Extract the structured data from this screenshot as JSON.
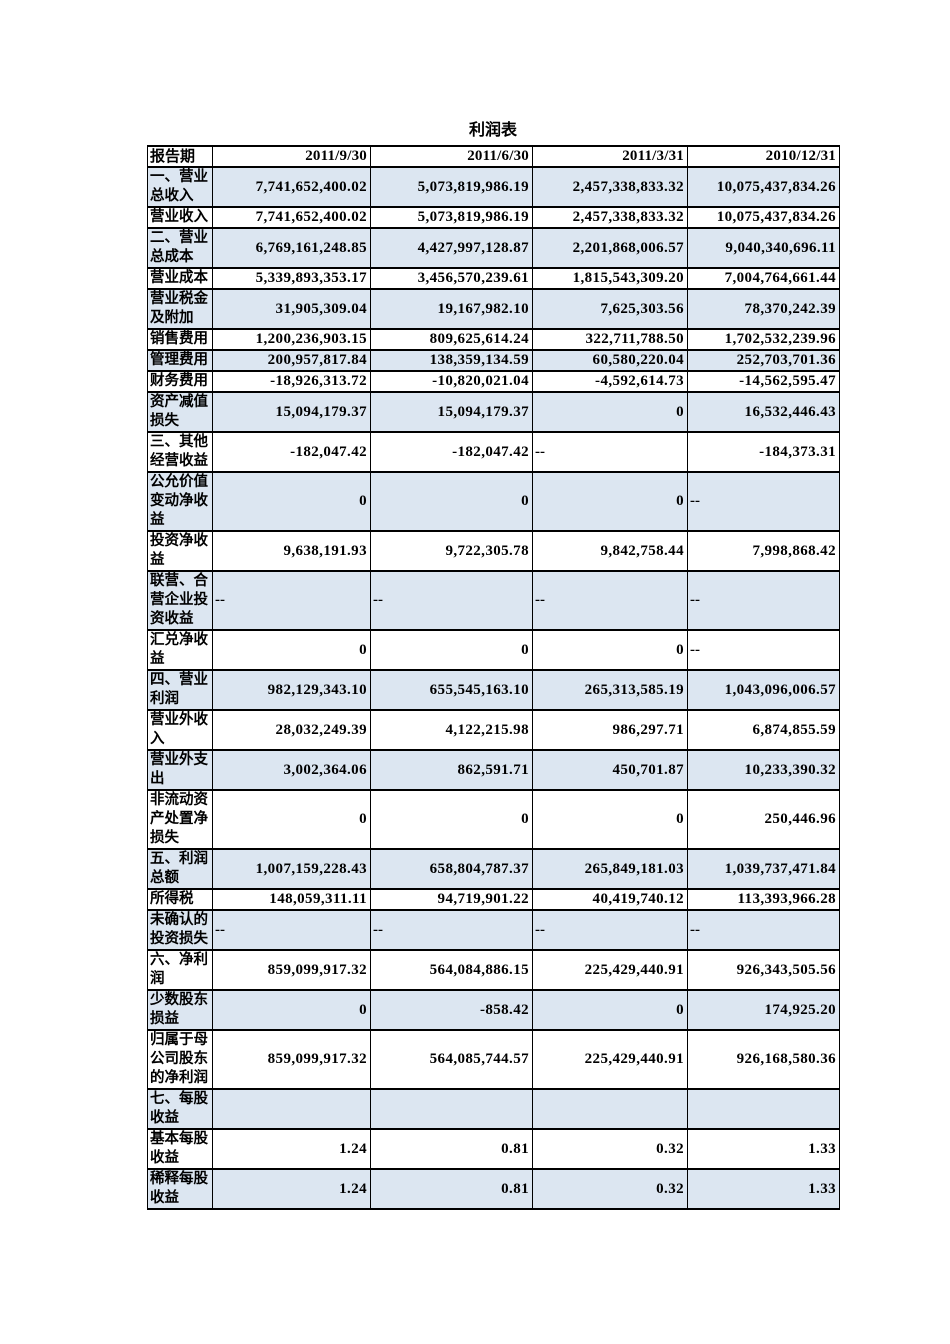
{
  "page": {
    "title": "利润表"
  },
  "colors": {
    "row_shade": "#dce6f1",
    "border": "#000000",
    "background": "#ffffff",
    "text": "#000000"
  },
  "chart_data": {
    "type": "table",
    "title": "利润表",
    "header": [
      "报告期",
      "2011/9/30",
      "2011/6/30",
      "2011/3/31",
      "2010/12/31"
    ],
    "rows": [
      {
        "label": "一、营业总收入",
        "values": [
          "7,741,652,400.02",
          "5,073,819,986.19",
          "2,457,338,833.32",
          "10,075,437,834.26"
        ],
        "shaded": true
      },
      {
        "label": "营业收入",
        "values": [
          "7,741,652,400.02",
          "5,073,819,986.19",
          "2,457,338,833.32",
          "10,075,437,834.26"
        ],
        "shaded": false
      },
      {
        "label": "二、营业总成本",
        "values": [
          "6,769,161,248.85",
          "4,427,997,128.87",
          "2,201,868,006.57",
          "9,040,340,696.11"
        ],
        "shaded": true
      },
      {
        "label": "营业成本",
        "values": [
          "5,339,893,353.17",
          "3,456,570,239.61",
          "1,815,543,309.20",
          "7,004,764,661.44"
        ],
        "shaded": false
      },
      {
        "label": "营业税金及附加",
        "values": [
          "31,905,309.04",
          "19,167,982.10",
          "7,625,303.56",
          "78,370,242.39"
        ],
        "shaded": true
      },
      {
        "label": "销售费用",
        "values": [
          "1,200,236,903.15",
          "809,625,614.24",
          "322,711,788.50",
          "1,702,532,239.96"
        ],
        "shaded": false
      },
      {
        "label": "管理费用",
        "values": [
          "200,957,817.84",
          "138,359,134.59",
          "60,580,220.04",
          "252,703,701.36"
        ],
        "shaded": true
      },
      {
        "label": "财务费用",
        "values": [
          "-18,926,313.72",
          "-10,820,021.04",
          "-4,592,614.73",
          "-14,562,595.47"
        ],
        "shaded": false
      },
      {
        "label": "资产减值损失",
        "values": [
          "15,094,179.37",
          "15,094,179.37",
          "0",
          "16,532,446.43"
        ],
        "shaded": true
      },
      {
        "label": "三、其他经营收益",
        "values": [
          "-182,047.42",
          "-182,047.42",
          "--",
          "-184,373.31"
        ],
        "shaded": false
      },
      {
        "label": "公允价值变动净收益",
        "values": [
          "0",
          "0",
          "0",
          "--"
        ],
        "shaded": true
      },
      {
        "label": "投资净收益",
        "values": [
          "9,638,191.93",
          "9,722,305.78",
          "9,842,758.44",
          "7,998,868.42"
        ],
        "shaded": false
      },
      {
        "label": "联营、合营企业投资收益",
        "values": [
          "--",
          "--",
          "--",
          "--"
        ],
        "shaded": true
      },
      {
        "label": "汇兑净收益",
        "values": [
          "0",
          "0",
          "0",
          "--"
        ],
        "shaded": false
      },
      {
        "label": "四、营业利润",
        "values": [
          "982,129,343.10",
          "655,545,163.10",
          "265,313,585.19",
          "1,043,096,006.57"
        ],
        "shaded": true
      },
      {
        "label": "营业外收入",
        "values": [
          "28,032,249.39",
          "4,122,215.98",
          "986,297.71",
          "6,874,855.59"
        ],
        "shaded": false
      },
      {
        "label": "营业外支出",
        "values": [
          "3,002,364.06",
          "862,591.71",
          "450,701.87",
          "10,233,390.32"
        ],
        "shaded": true
      },
      {
        "label": "非流动资产处置净损失",
        "values": [
          "0",
          "0",
          "0",
          "250,446.96"
        ],
        "shaded": false
      },
      {
        "label": "五、利润总额",
        "values": [
          "1,007,159,228.43",
          "658,804,787.37",
          "265,849,181.03",
          "1,039,737,471.84"
        ],
        "shaded": true
      },
      {
        "label": "所得税",
        "values": [
          "148,059,311.11",
          "94,719,901.22",
          "40,419,740.12",
          "113,393,966.28"
        ],
        "shaded": false
      },
      {
        "label": "未确认的投资损失",
        "values": [
          "--",
          "--",
          "--",
          "--"
        ],
        "shaded": true
      },
      {
        "label": "六、净利润",
        "values": [
          "859,099,917.32",
          "564,084,886.15",
          "225,429,440.91",
          "926,343,505.56"
        ],
        "shaded": false
      },
      {
        "label": "少数股东损益",
        "values": [
          "0",
          "-858.42",
          "0",
          "174,925.20"
        ],
        "shaded": true
      },
      {
        "label": "归属于母公司股东的净利润",
        "values": [
          "859,099,917.32",
          "564,085,744.57",
          "225,429,440.91",
          "926,168,580.36"
        ],
        "shaded": false
      },
      {
        "label": "七、每股收益",
        "values": [
          "",
          "",
          "",
          ""
        ],
        "shaded": true
      },
      {
        "label": "基本每股收益",
        "values": [
          "1.24",
          "0.81",
          "0.32",
          "1.33"
        ],
        "shaded": false
      },
      {
        "label": "稀释每股收益",
        "values": [
          "1.24",
          "0.81",
          "0.32",
          "1.33"
        ],
        "shaded": true
      }
    ]
  }
}
